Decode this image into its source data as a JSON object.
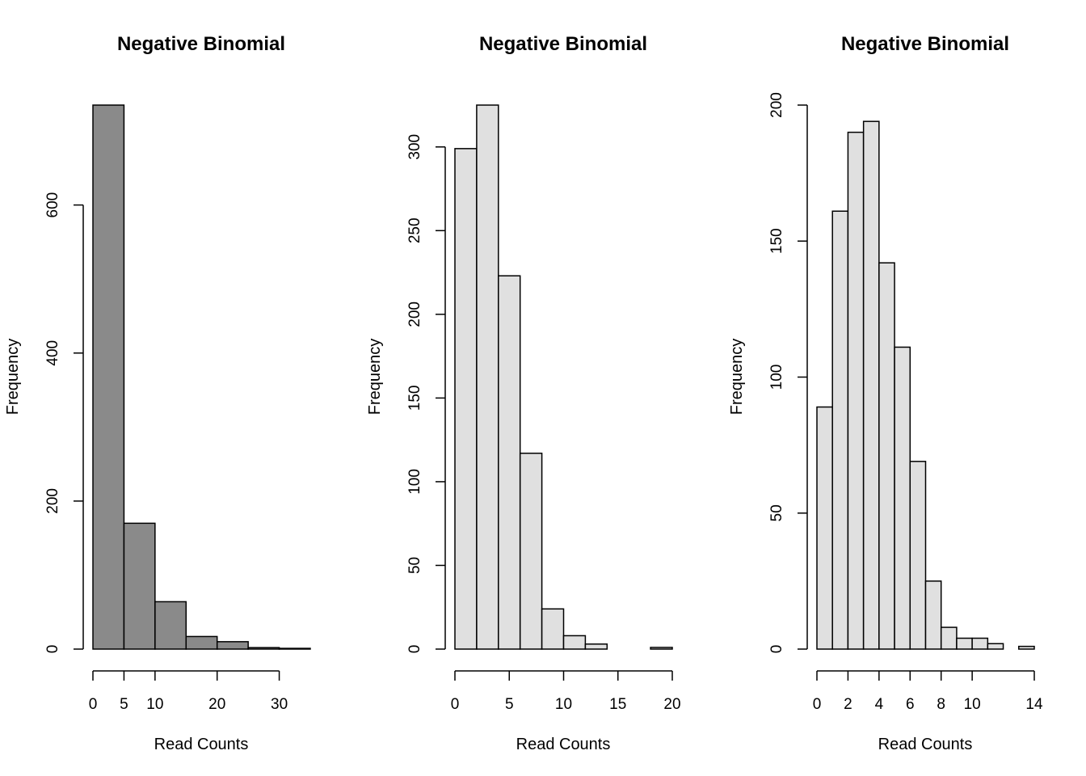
{
  "chart_data": [
    {
      "type": "bar",
      "title": "Negative Binomial",
      "xlabel": "Read Counts",
      "ylabel": "Frequency",
      "bin_edges": [
        0,
        5,
        10,
        15,
        20,
        25,
        30,
        35
      ],
      "values": [
        735,
        170,
        64,
        17,
        10,
        2,
        1
      ],
      "xlim": [
        0,
        35
      ],
      "ylim": [
        0,
        735
      ],
      "x_ticks": [
        0,
        5,
        10,
        20,
        30
      ],
      "y_ticks": [
        0,
        200,
        400,
        600
      ],
      "bar_color": "#8a8a8a",
      "grid": false
    },
    {
      "type": "bar",
      "title": "Negative Binomial",
      "xlabel": "Read Counts",
      "ylabel": "Frequency",
      "bin_edges": [
        0,
        2,
        4,
        6,
        8,
        10,
        12,
        14,
        16,
        18,
        20
      ],
      "values": [
        299,
        325,
        223,
        117,
        24,
        8,
        3,
        0,
        0,
        1
      ],
      "xlim": [
        0,
        20
      ],
      "ylim": [
        0,
        325
      ],
      "x_ticks": [
        0,
        5,
        10,
        15,
        20
      ],
      "y_ticks": [
        0,
        50,
        100,
        150,
        200,
        250,
        300
      ],
      "bar_color": "#e0e0e0",
      "grid": false
    },
    {
      "type": "bar",
      "title": "Negative Binomial",
      "xlabel": "Read Counts",
      "ylabel": "Frequency",
      "bin_edges": [
        0,
        1,
        2,
        3,
        4,
        5,
        6,
        7,
        8,
        9,
        10,
        11,
        12,
        13,
        14
      ],
      "values": [
        89,
        161,
        190,
        194,
        142,
        111,
        69,
        25,
        8,
        4,
        4,
        2,
        0,
        1
      ],
      "xlim": [
        0,
        14
      ],
      "ylim": [
        0,
        200
      ],
      "x_ticks": [
        0,
        2,
        4,
        6,
        8,
        10,
        14
      ],
      "y_ticks": [
        0,
        50,
        100,
        150,
        200
      ],
      "bar_color": "#e0e0e0",
      "grid": false
    }
  ]
}
